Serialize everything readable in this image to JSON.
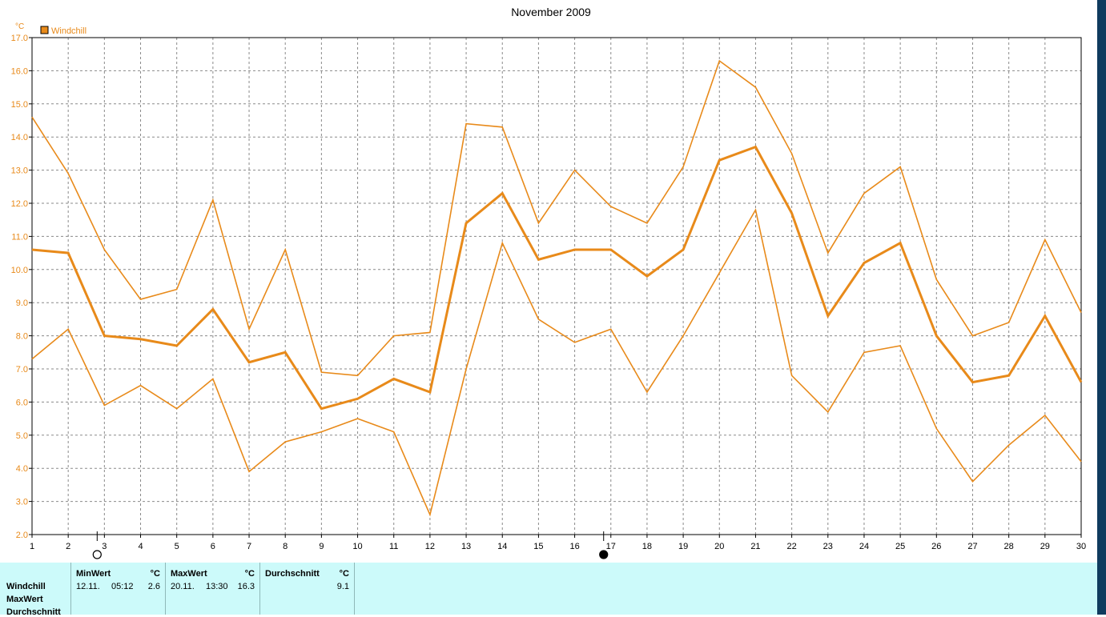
{
  "chart_data": {
    "type": "line",
    "title": "November 2009",
    "y_unit": "°C",
    "legend": [
      {
        "label": "Windchill",
        "color": "#e88a1a"
      }
    ],
    "x": [
      1,
      2,
      3,
      4,
      5,
      6,
      7,
      8,
      9,
      10,
      11,
      12,
      13,
      14,
      15,
      16,
      17,
      18,
      19,
      20,
      21,
      22,
      23,
      24,
      25,
      26,
      27,
      28,
      29,
      30
    ],
    "ylim": [
      2.0,
      17.0
    ],
    "ytick_labels": [
      "2.0",
      "3.0",
      "4.0",
      "5.0",
      "6.0",
      "7.0",
      "8.0",
      "9.0",
      "10.0",
      "11.0",
      "12.0",
      "13.0",
      "14.0",
      "15.0",
      "16.0",
      "17.0"
    ],
    "grid": true,
    "series": [
      {
        "role": "max",
        "values": [
          14.6,
          12.9,
          10.6,
          9.1,
          9.4,
          12.1,
          8.2,
          10.6,
          6.9,
          6.8,
          8.0,
          8.1,
          14.4,
          14.3,
          11.4,
          13.0,
          11.9,
          11.4,
          13.1,
          16.3,
          15.5,
          13.5,
          10.5,
          12.3,
          13.1,
          9.7,
          8.0,
          8.4,
          10.9,
          8.7
        ]
      },
      {
        "role": "avg",
        "values": [
          10.6,
          10.5,
          8.0,
          7.9,
          7.7,
          8.8,
          7.2,
          7.5,
          5.8,
          6.1,
          6.7,
          6.3,
          11.4,
          12.3,
          10.3,
          10.6,
          10.6,
          9.8,
          10.6,
          13.3,
          13.7,
          11.7,
          8.6,
          10.2,
          10.8,
          8.0,
          6.6,
          6.8,
          8.6,
          6.6
        ]
      },
      {
        "role": "min",
        "values": [
          7.3,
          8.2,
          5.9,
          6.5,
          5.8,
          6.7,
          3.9,
          4.8,
          5.1,
          5.5,
          5.1,
          2.6,
          7.0,
          10.8,
          8.5,
          7.8,
          8.2,
          6.3,
          8.0,
          9.9,
          11.8,
          6.8,
          5.7,
          7.5,
          7.7,
          5.2,
          3.6,
          4.7,
          5.6,
          4.2
        ]
      }
    ],
    "moon_phases": [
      {
        "day": 2.8,
        "phase": "full"
      },
      {
        "day": 16.8,
        "phase": "new"
      }
    ]
  },
  "stats": {
    "row_labels": [
      "Windchill",
      "MaxWert",
      "Durchschnitt"
    ],
    "min": {
      "header": "MinWert",
      "unit": "°C",
      "date": "12.11.",
      "time": "05:12",
      "value": "2.6"
    },
    "max": {
      "header": "MaxWert",
      "unit": "°C",
      "date": "20.11.",
      "time": "13:30",
      "value": "16.3"
    },
    "avg": {
      "header": "Durchschnitt",
      "unit": "°C",
      "value": "9.1"
    }
  }
}
